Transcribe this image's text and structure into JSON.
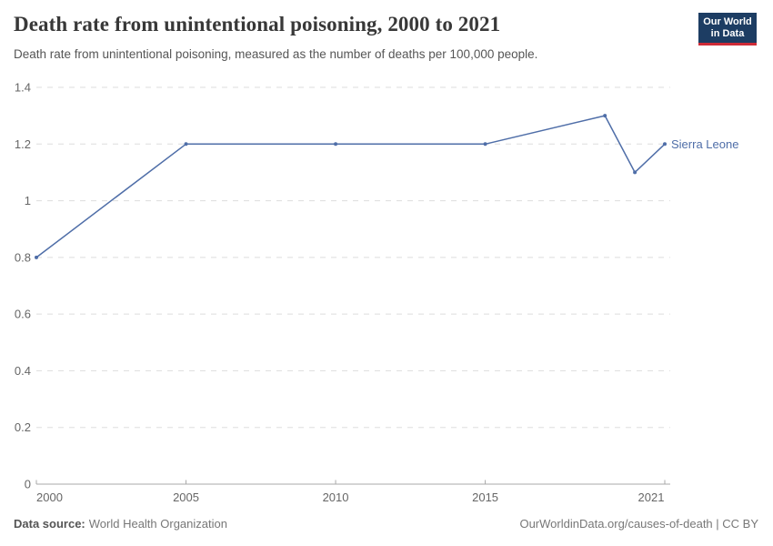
{
  "header": {
    "title": "Death rate from unintentional poisoning, 2000 to 2021",
    "subtitle": "Death rate from unintentional poisoning, measured as the number of deaths per 100,000 people.",
    "logo": {
      "line1": "Our World",
      "line2": "in Data"
    }
  },
  "chart_data": {
    "type": "line",
    "title": "Death rate from unintentional poisoning, 2000 to 2021",
    "xlabel": "",
    "ylabel": "",
    "xlim": [
      2000,
      2021
    ],
    "ylim": [
      0,
      1.4
    ],
    "xticks": [
      2000,
      2005,
      2010,
      2015,
      2021
    ],
    "yticks": [
      0,
      0.2,
      0.4,
      0.6,
      0.8,
      1,
      1.2,
      1.4
    ],
    "grid": "horizontal-dashed",
    "legend_position": "end-of-line-label",
    "series": [
      {
        "name": "Sierra Leone",
        "color": "#4F6EA8",
        "x": [
          2000,
          2005,
          2010,
          2015,
          2019,
          2020,
          2021
        ],
        "values": [
          0.8,
          1.2,
          1.2,
          1.2,
          1.3,
          1.1,
          1.2
        ]
      }
    ]
  },
  "footer": {
    "source_label": "Data source:",
    "source_value": "World Health Organization",
    "rights": "OurWorldinData.org/causes-of-death | CC BY"
  },
  "colors": {
    "line": "#4F6EA8",
    "entity_label": "#4F6EA8",
    "gridline": "#dddddd",
    "axis": "#a8a8a8",
    "tick_text": "#666666",
    "logo_bg": "#1d3d63",
    "logo_red": "#ce2b37"
  }
}
